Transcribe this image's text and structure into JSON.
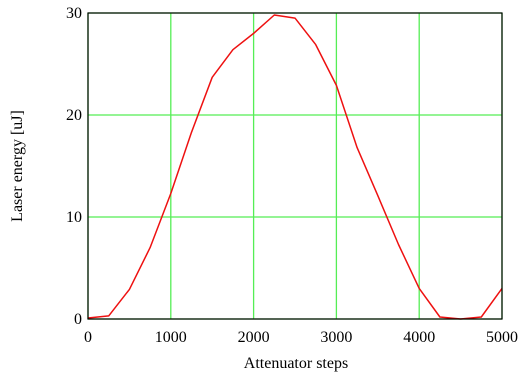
{
  "chart_data": {
    "type": "line",
    "title": "",
    "xlabel": "Attenuator steps",
    "ylabel": "Laser energy [uJ]",
    "xlim": [
      0,
      5000
    ],
    "ylim": [
      0,
      30
    ],
    "xticks": [
      0,
      1000,
      2000,
      3000,
      4000,
      5000
    ],
    "yticks": [
      0,
      10,
      20,
      30
    ],
    "xtick_labels": [
      "0",
      "1000",
      "2000",
      "3000",
      "4000",
      "5000"
    ],
    "ytick_labels": [
      "0",
      "10",
      "20",
      "30"
    ],
    "grid": true,
    "grid_color": "#55ee55",
    "line_color": "#ee1111",
    "series": [
      {
        "x": [
          0,
          250,
          500,
          750,
          1000,
          1250,
          1500,
          1750,
          2000,
          2250,
          2500,
          2750,
          3000,
          3250,
          3500,
          3750,
          4000,
          4250,
          4500,
          4750,
          5000
        ],
        "y": [
          0.1,
          0.3,
          2.9,
          7.0,
          12.3,
          18.3,
          23.7,
          26.4,
          28.0,
          29.8,
          29.5,
          26.9,
          22.9,
          16.8,
          12.1,
          7.3,
          3.0,
          0.2,
          0.0,
          0.2,
          3.0
        ]
      }
    ]
  }
}
